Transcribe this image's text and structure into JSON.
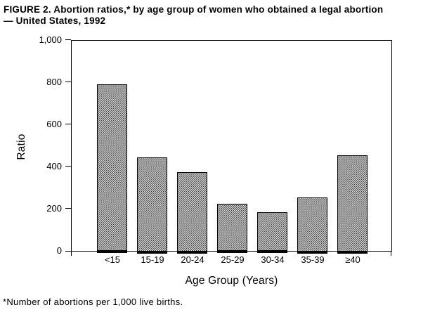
{
  "figure": {
    "title_line1": "FIGURE 2. Abortion ratios,* by age group of women who obtained a legal abortion",
    "title_line2": "— United States, 1992",
    "footnote": "*Number of abortions per 1,000 live births."
  },
  "chart_data": {
    "type": "bar",
    "title": "FIGURE 2. Abortion ratios, by age group of women who obtained a legal abortion — United States, 1992",
    "categories": [
      "<15",
      "15-19",
      "20-24",
      "25-29",
      "30-34",
      "35-39",
      "≥40"
    ],
    "values": [
      790,
      445,
      375,
      222,
      183,
      255,
      455
    ],
    "xlabel": "Age Group (Years)",
    "ylabel": "Ratio",
    "ylim": [
      0,
      1000
    ],
    "yticks": [
      0,
      200,
      400,
      600,
      800,
      1000
    ],
    "ytick_labels": [
      "0",
      "200",
      "400",
      "600",
      "800",
      "1,000"
    ],
    "grid": false,
    "legend": "none",
    "bar_pattern": "black-dot-stipple-on-white",
    "colors": {
      "background": "#ffffff",
      "text": "#000000",
      "axis": "#000000",
      "bar_border": "#000000",
      "bar_dot": "#1a1a1a"
    }
  }
}
